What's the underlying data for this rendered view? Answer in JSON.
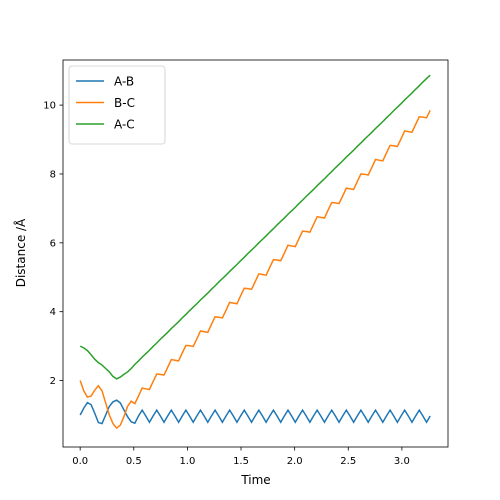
{
  "chart_data": {
    "type": "line",
    "x_label": "Time",
    "y_label": "Distance /Å",
    "x": [
      0,
      0.034,
      0.068,
      0.102,
      0.136,
      0.17,
      0.204,
      0.238,
      0.272,
      0.306,
      0.34,
      0.374,
      0.408,
      0.442,
      0.476,
      0.51,
      0.544,
      0.578,
      0.612,
      0.646,
      0.68,
      0.714,
      0.748,
      0.782,
      0.816,
      0.85,
      0.884,
      0.918,
      0.952,
      0.986,
      1.02,
      1.054,
      1.088,
      1.122,
      1.156,
      1.19,
      1.224,
      1.258,
      1.292,
      1.326,
      1.36,
      1.394,
      1.428,
      1.462,
      1.496,
      1.53,
      1.564,
      1.598,
      1.632,
      1.666,
      1.7,
      1.734,
      1.768,
      1.802,
      1.836,
      1.87,
      1.904,
      1.938,
      1.972,
      2.006,
      2.04,
      2.074,
      2.108,
      2.142,
      2.176,
      2.21,
      2.244,
      2.278,
      2.312,
      2.346,
      2.38,
      2.414,
      2.448,
      2.482,
      2.516,
      2.55,
      2.584,
      2.618,
      2.652,
      2.686,
      2.72,
      2.754,
      2.788,
      2.822,
      2.856,
      2.89,
      2.924,
      2.958,
      2.992,
      3.026,
      3.06,
      3.094,
      3.128,
      3.162,
      3.196,
      3.23,
      3.264
    ],
    "series": [
      {
        "name": "A-B",
        "color": "#1f77b4",
        "values": [
          1.0,
          1.2,
          1.36,
          1.3,
          1.05,
          0.78,
          0.75,
          1.0,
          1.25,
          1.38,
          1.43,
          1.35,
          1.15,
          0.95,
          0.8,
          0.76,
          0.97,
          1.14,
          0.97,
          0.79,
          0.97,
          1.14,
          0.97,
          0.79,
          0.97,
          1.14,
          0.97,
          0.79,
          0.97,
          1.14,
          0.97,
          0.79,
          0.97,
          1.14,
          0.97,
          0.79,
          0.97,
          1.14,
          0.97,
          0.79,
          0.97,
          1.14,
          0.97,
          0.79,
          0.97,
          1.14,
          0.97,
          0.79,
          0.97,
          1.14,
          0.97,
          0.79,
          0.97,
          1.14,
          0.97,
          0.79,
          0.97,
          1.14,
          0.97,
          0.79,
          0.97,
          1.14,
          0.97,
          0.79,
          0.97,
          1.14,
          0.97,
          0.79,
          0.97,
          1.14,
          0.97,
          0.79,
          0.97,
          1.14,
          0.97,
          0.79,
          0.97,
          1.14,
          0.97,
          0.79,
          0.97,
          1.14,
          0.97,
          0.79,
          0.97,
          1.14,
          0.97,
          0.79,
          0.97,
          1.14,
          0.97,
          0.79,
          0.97,
          1.14,
          0.97,
          0.79,
          0.97
        ]
      },
      {
        "name": "B-C",
        "color": "#ff7f0e",
        "values": [
          2.0,
          1.7,
          1.52,
          1.55,
          1.72,
          1.85,
          1.7,
          1.35,
          1.0,
          0.75,
          0.62,
          0.7,
          0.95,
          1.25,
          1.4,
          1.33,
          1.55,
          1.78,
          1.76,
          1.74,
          1.97,
          2.19,
          2.18,
          2.16,
          2.38,
          2.61,
          2.59,
          2.57,
          2.8,
          3.02,
          3.01,
          2.99,
          3.21,
          3.44,
          3.42,
          3.4,
          3.63,
          3.85,
          3.84,
          3.82,
          4.04,
          4.27,
          4.25,
          4.23,
          4.46,
          4.68,
          4.67,
          4.65,
          4.87,
          5.1,
          5.08,
          5.06,
          5.29,
          5.51,
          5.5,
          5.48,
          5.7,
          5.93,
          5.91,
          5.89,
          6.12,
          6.34,
          6.33,
          6.31,
          6.53,
          6.76,
          6.74,
          6.72,
          6.95,
          7.17,
          7.16,
          7.14,
          7.36,
          7.59,
          7.57,
          7.55,
          7.78,
          8.0,
          7.99,
          7.97,
          8.19,
          8.42,
          8.4,
          8.38,
          8.61,
          8.83,
          8.82,
          8.8,
          9.02,
          9.25,
          9.23,
          9.21,
          9.44,
          9.66,
          9.65,
          9.63,
          9.85
        ]
      },
      {
        "name": "A-C",
        "color": "#2ca02c",
        "values": [
          3.0,
          2.95,
          2.87,
          2.75,
          2.62,
          2.52,
          2.45,
          2.35,
          2.25,
          2.12,
          2.05,
          2.1,
          2.18,
          2.25,
          2.35,
          2.47,
          2.57,
          2.68,
          2.78,
          2.88,
          2.99,
          3.09,
          3.2,
          3.3,
          3.4,
          3.51,
          3.61,
          3.71,
          3.82,
          3.92,
          4.03,
          4.13,
          4.23,
          4.34,
          4.44,
          4.54,
          4.65,
          4.75,
          4.86,
          4.96,
          5.06,
          5.17,
          5.27,
          5.37,
          5.48,
          5.58,
          5.69,
          5.79,
          5.89,
          6.0,
          6.1,
          6.2,
          6.31,
          6.41,
          6.52,
          6.62,
          6.72,
          6.83,
          6.93,
          7.03,
          7.14,
          7.24,
          7.35,
          7.45,
          7.55,
          7.66,
          7.76,
          7.86,
          7.97,
          8.07,
          8.18,
          8.28,
          8.38,
          8.49,
          8.59,
          8.69,
          8.8,
          8.9,
          9.01,
          9.11,
          9.21,
          9.32,
          9.42,
          9.52,
          9.63,
          9.73,
          9.84,
          9.94,
          10.04,
          10.15,
          10.25,
          10.35,
          10.46,
          10.56,
          10.67,
          10.77,
          10.87
        ]
      }
    ],
    "xlim": [
      -0.16,
      3.43
    ],
    "ylim": [
      0.07,
      11.31
    ],
    "xticks": [
      {
        "value": 0,
        "label": "0.0"
      },
      {
        "value": 0.5,
        "label": "0.5"
      },
      {
        "value": 1,
        "label": "1.0"
      },
      {
        "value": 1.5,
        "label": "1.5"
      },
      {
        "value": 2,
        "label": "2.0"
      },
      {
        "value": 2.5,
        "label": "2.5"
      },
      {
        "value": 3,
        "label": "3.0"
      }
    ],
    "yticks": [
      2,
      4,
      6,
      8,
      10
    ],
    "legend": "upper left",
    "grid": false
  }
}
